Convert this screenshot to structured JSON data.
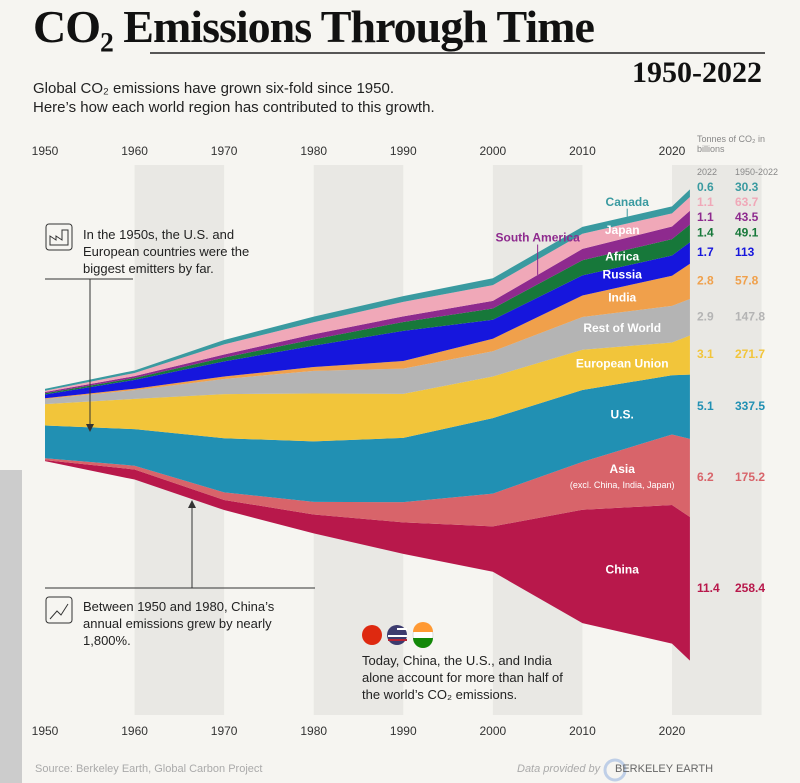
{
  "chart_data": {
    "type": "streamgraph",
    "title": "CO₂ Emissions Through Time",
    "subtitle": "1950-2022",
    "description": [
      "Global CO₂ emissions have grown six-fold since 1950.",
      "Here’s how each world region has contributed to this growth."
    ],
    "unit_label": "Tonnes of CO₂ in billions",
    "column_headers": [
      "2022",
      "1950-2022"
    ],
    "x": [
      1950,
      1960,
      1970,
      1980,
      1990,
      2000,
      2010,
      2020,
      2022
    ],
    "xlim": [
      1950,
      2022
    ],
    "xticks": [
      1950,
      1960,
      1970,
      1980,
      1990,
      2000,
      2010,
      2020
    ],
    "series": [
      {
        "name": "China",
        "color": "#b8184b",
        "values": [
          0.08,
          0.8,
          0.8,
          1.5,
          2.5,
          3.6,
          9.0,
          11.0,
          11.4
        ],
        "cumulative": 258.4
      },
      {
        "name": "Asia",
        "note": "(excl. China, India, Japan)",
        "color": "#d8646a",
        "values": [
          0.15,
          0.3,
          0.6,
          1.0,
          1.6,
          2.6,
          3.8,
          5.6,
          6.2
        ],
        "cumulative": 175.2
      },
      {
        "name": "U.S.",
        "color": "#2190b3",
        "values": [
          2.6,
          2.9,
          4.3,
          4.8,
          5.1,
          6.0,
          5.7,
          4.7,
          5.1
        ],
        "cumulative": 337.5
      },
      {
        "name": "European Union",
        "color": "#f2c53a",
        "values": [
          1.7,
          2.4,
          3.5,
          3.8,
          3.5,
          3.3,
          3.2,
          2.6,
          3.1
        ],
        "cumulative": 271.7
      },
      {
        "name": "Rest of World",
        "color": "#b4b4b4",
        "values": [
          0.4,
          0.7,
          1.2,
          1.8,
          2.0,
          2.0,
          2.6,
          2.9,
          2.9
        ],
        "cumulative": 147.8
      },
      {
        "name": "India",
        "color": "#f0a04b",
        "values": [
          0.06,
          0.11,
          0.2,
          0.3,
          0.6,
          1.0,
          1.7,
          2.4,
          2.8
        ],
        "cumulative": 57.8
      },
      {
        "name": "Russia",
        "color": "#1616dd",
        "values": [
          0.3,
          0.7,
          1.2,
          1.7,
          2.4,
          1.5,
          1.6,
          1.6,
          1.7
        ],
        "cumulative": 113.0
      },
      {
        "name": "Africa",
        "color": "#17783a",
        "values": [
          0.1,
          0.15,
          0.3,
          0.5,
          0.7,
          0.9,
          1.2,
          1.3,
          1.4
        ],
        "cumulative": 49.1
      },
      {
        "name": "South America",
        "color": "#8e2a8e",
        "values": [
          0.1,
          0.15,
          0.25,
          0.4,
          0.45,
          0.6,
          0.9,
          1.0,
          1.1
        ],
        "cumulative": 43.5
      },
      {
        "name": "Japan",
        "color": "#f0a8b8",
        "values": [
          0.1,
          0.25,
          0.8,
          0.95,
          1.15,
          1.25,
          1.2,
          1.05,
          1.1
        ],
        "cumulative": 63.7
      },
      {
        "name": "Canada",
        "color": "#3a9aa0",
        "values": [
          0.15,
          0.2,
          0.35,
          0.45,
          0.45,
          0.55,
          0.55,
          0.55,
          0.6
        ],
        "cumulative": 30.3
      }
    ],
    "annotations": [
      "In the 1950s, the U.S. and European countries were the biggest emitters by far.",
      "Between 1950 and 1980, China’s annual emissions grew by nearly 1,800%.",
      "Today, China, the U.S., and India alone account for more than half of the world’s CO₂ emissions."
    ],
    "source": "Source: Berkeley Earth, Global Carbon Project",
    "provider_prefix": "Data provided by",
    "provider": "BERKELEY EARTH"
  }
}
